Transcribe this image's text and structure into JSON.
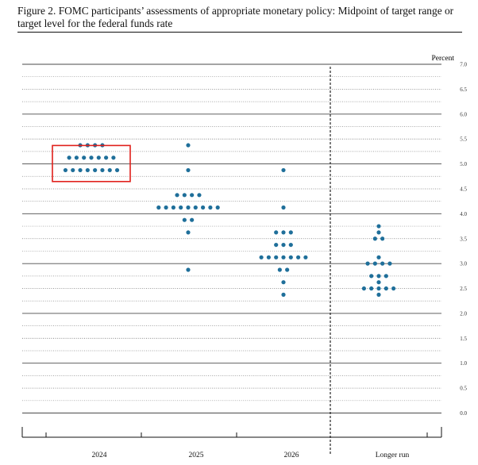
{
  "title": "Figure 2.  FOMC participants’ assessments of appropriate monetary policy:  Midpoint of target range or target level for the federal funds rate",
  "chart_data": {
    "type": "scatter",
    "ylabel": "Percent",
    "ylim": [
      0,
      7
    ],
    "y_ticks": [
      "0.0",
      "0.5",
      "1.0",
      "1.5",
      "2.0",
      "2.5",
      "3.0",
      "3.5",
      "4.0",
      "4.5",
      "5.0",
      "5.5",
      "6.0",
      "6.5",
      "7.0"
    ],
    "grid": true,
    "categories": [
      "2024",
      "2025",
      "2026",
      "Longer run"
    ],
    "dot_color": "#1f6f9a",
    "highlight_color": "#e0201b",
    "highlight": {
      "category": "2024",
      "y_range": [
        4.75,
        5.25
      ]
    },
    "dots": {
      "2024": [
        {
          "y": 5.375,
          "count": 4
        },
        {
          "y": 5.125,
          "count": 7
        },
        {
          "y": 4.875,
          "count": 8
        }
      ],
      "2025": [
        {
          "y": 5.375,
          "count": 1
        },
        {
          "y": 4.875,
          "count": 1
        },
        {
          "y": 4.375,
          "count": 4
        },
        {
          "y": 4.125,
          "count": 9
        },
        {
          "y": 3.875,
          "count": 2
        },
        {
          "y": 3.625,
          "count": 1
        },
        {
          "y": 2.875,
          "count": 1
        }
      ],
      "2026": [
        {
          "y": 4.875,
          "count": 1
        },
        {
          "y": 4.125,
          "count": 1
        },
        {
          "y": 3.625,
          "count": 3
        },
        {
          "y": 3.375,
          "count": 3
        },
        {
          "y": 3.125,
          "count": 7
        },
        {
          "y": 2.875,
          "count": 2
        },
        {
          "y": 2.625,
          "count": 1
        },
        {
          "y": 2.375,
          "count": 1
        }
      ],
      "Longer run": [
        {
          "y": 3.75,
          "count": 1
        },
        {
          "y": 3.625,
          "count": 1
        },
        {
          "y": 3.5,
          "count": 2
        },
        {
          "y": 3.125,
          "count": 1
        },
        {
          "y": 3.0,
          "count": 4
        },
        {
          "y": 2.75,
          "count": 3
        },
        {
          "y": 2.625,
          "count": 1
        },
        {
          "y": 2.5,
          "count": 5
        },
        {
          "y": 2.375,
          "count": 1
        }
      ]
    }
  }
}
